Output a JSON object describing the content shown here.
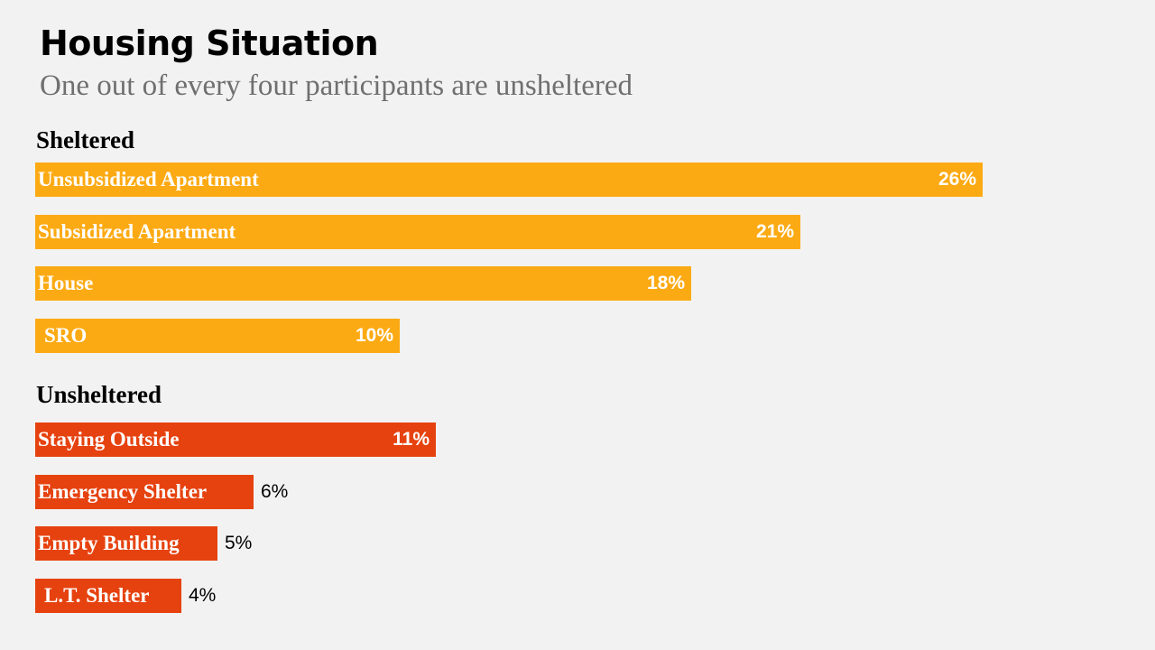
{
  "title": "Housing Situation",
  "subtitle": "One out of every four participants are unsheltered",
  "colors": {
    "background": "#f2f2f2",
    "sheltered": "#fcaa13",
    "unsheltered": "#e6420f"
  },
  "chart_data": {
    "type": "bar",
    "orientation": "horizontal",
    "unit": "%",
    "groups": [
      {
        "name": "Sheltered",
        "color": "#fcaa13",
        "categories": [
          "Unsubsidized Apartment",
          "Subsidized Apartment",
          "House",
          "SRO"
        ],
        "values": [
          26,
          21,
          18,
          10
        ],
        "labels": [
          "26%",
          "21%",
          "18%",
          "10%"
        ]
      },
      {
        "name": "Unsheltered",
        "color": "#e6420f",
        "categories": [
          "Staying Outside",
          "Emergency Shelter",
          "Empty Building",
          "L.T. Shelter"
        ],
        "values": [
          11,
          6,
          5,
          4
        ],
        "labels": [
          "11%",
          "6%",
          "5%",
          "4%"
        ]
      }
    ]
  }
}
